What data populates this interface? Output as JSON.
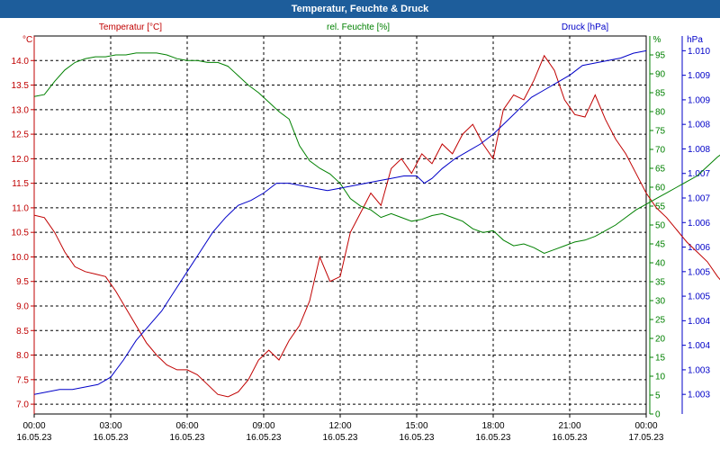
{
  "window_title": "Temperatur, Feuchte & Druck",
  "colors": {
    "temperature": "#c00000",
    "humidity": "#008000",
    "pressure": "#0000c8",
    "titlebar": "#1d5d9b",
    "axis": "#000000",
    "grid": "#000000"
  },
  "chart_data": {
    "type": "line",
    "title": "Temperatur, Feuchte & Druck",
    "grid": true,
    "x_ticks": [
      {
        "time": "00:00",
        "date": "16.05.23"
      },
      {
        "time": "03:00",
        "date": "16.05.23"
      },
      {
        "time": "06:00",
        "date": "16.05.23"
      },
      {
        "time": "09:00",
        "date": "16.05.23"
      },
      {
        "time": "12:00",
        "date": "16.05.23"
      },
      {
        "time": "15:00",
        "date": "16.05.23"
      },
      {
        "time": "18:00",
        "date": "16.05.23"
      },
      {
        "time": "21:00",
        "date": "16.05.23"
      },
      {
        "time": "00:00",
        "date": "17.05.23"
      }
    ],
    "x_range_hours": [
      0,
      24
    ],
    "axes": {
      "temperature": {
        "label": "Temperatur [°C]",
        "unit": "°C",
        "range": [
          6.8,
          14.5
        ],
        "ticks": [
          "7.0",
          "7.5",
          "8.0",
          "8.5",
          "9.0",
          "9.5",
          "10.0",
          "10.5",
          "11.0",
          "11.5",
          "12.0",
          "12.5",
          "13.0",
          "13.5",
          "14.0"
        ],
        "tick_values": [
          7.0,
          7.5,
          8.0,
          8.5,
          9.0,
          9.5,
          10.0,
          10.5,
          11.0,
          11.5,
          12.0,
          12.5,
          13.0,
          13.5,
          14.0
        ]
      },
      "humidity": {
        "label": "rel. Feuchte [%]",
        "unit": "%",
        "range": [
          0,
          100
        ],
        "ticks": [
          "0",
          "5",
          "10",
          "15",
          "20",
          "25",
          "30",
          "35",
          "40",
          "45",
          "50",
          "55",
          "60",
          "65",
          "70",
          "75",
          "80",
          "85",
          "90",
          "95"
        ],
        "tick_values": [
          0,
          5,
          10,
          15,
          20,
          25,
          30,
          35,
          40,
          45,
          50,
          55,
          60,
          65,
          70,
          75,
          80,
          85,
          90,
          95
        ]
      },
      "pressure": {
        "label": "Druck [hPa]",
        "unit": "hPa",
        "range": [
          1002.6,
          1010.3
        ],
        "ticks": [
          "1.003",
          "1.003",
          "1.004",
          "1.004",
          "1.005",
          "1.005",
          "1.006",
          "1.006",
          "1.007",
          "1.007",
          "1.008",
          "1.008",
          "1.009",
          "1.009",
          "1.010"
        ],
        "tick_values": [
          1003.0,
          1003.5,
          1004.0,
          1004.5,
          1005.0,
          1005.5,
          1006.0,
          1006.5,
          1007.0,
          1007.5,
          1008.0,
          1008.5,
          1009.0,
          1009.5,
          1010.0
        ]
      }
    },
    "series": [
      {
        "name": "Temperatur [°C]",
        "axis": "temperature",
        "points": [
          [
            0,
            10.85
          ],
          [
            0.4,
            10.8
          ],
          [
            0.8,
            10.5
          ],
          [
            1.2,
            10.1
          ],
          [
            1.6,
            9.8
          ],
          [
            2.0,
            9.7
          ],
          [
            2.4,
            9.65
          ],
          [
            2.8,
            9.6
          ],
          [
            3.2,
            9.3
          ],
          [
            3.6,
            8.95
          ],
          [
            4.0,
            8.6
          ],
          [
            4.4,
            8.25
          ],
          [
            4.8,
            8.0
          ],
          [
            5.2,
            7.8
          ],
          [
            5.6,
            7.7
          ],
          [
            6.0,
            7.7
          ],
          [
            6.4,
            7.6
          ],
          [
            6.8,
            7.4
          ],
          [
            7.2,
            7.2
          ],
          [
            7.6,
            7.15
          ],
          [
            8.0,
            7.25
          ],
          [
            8.4,
            7.5
          ],
          [
            8.8,
            7.9
          ],
          [
            9.2,
            8.1
          ],
          [
            9.6,
            7.9
          ],
          [
            10.0,
            8.3
          ],
          [
            10.4,
            8.6
          ],
          [
            10.8,
            9.1
          ],
          [
            11.2,
            10.0
          ],
          [
            11.6,
            9.5
          ],
          [
            12.0,
            9.6
          ],
          [
            12.4,
            10.5
          ],
          [
            12.8,
            10.9
          ],
          [
            13.2,
            11.3
          ],
          [
            13.6,
            11.05
          ],
          [
            14.0,
            11.8
          ],
          [
            14.4,
            12.0
          ],
          [
            14.8,
            11.7
          ],
          [
            15.2,
            12.1
          ],
          [
            15.6,
            11.9
          ],
          [
            16.0,
            12.3
          ],
          [
            16.4,
            12.1
          ],
          [
            16.8,
            12.5
          ],
          [
            17.2,
            12.7
          ],
          [
            17.6,
            12.3
          ],
          [
            18.0,
            12.0
          ],
          [
            18.4,
            13.0
          ],
          [
            18.8,
            13.3
          ],
          [
            19.2,
            13.2
          ],
          [
            19.6,
            13.6
          ],
          [
            20.0,
            14.1
          ],
          [
            20.4,
            13.8
          ],
          [
            20.8,
            13.2
          ],
          [
            21.2,
            12.9
          ],
          [
            21.6,
            12.85
          ],
          [
            22.0,
            13.3
          ],
          [
            22.4,
            12.8
          ],
          [
            22.8,
            12.4
          ],
          [
            23.2,
            12.1
          ],
          [
            23.6,
            11.7
          ],
          [
            24.0,
            11.3
          ],
          [
            24.4,
            11.0
          ],
          [
            24.8,
            10.8
          ],
          [
            25.2,
            10.55
          ],
          [
            25.6,
            10.3
          ],
          [
            26.0,
            10.1
          ],
          [
            26.4,
            9.9
          ],
          [
            26.8,
            9.6
          ],
          [
            27.2,
            9.35
          ]
        ]
      },
      {
        "name": "rel. Feuchte [%]",
        "axis": "humidity",
        "points": [
          [
            0,
            84
          ],
          [
            0.4,
            84.5
          ],
          [
            0.8,
            88
          ],
          [
            1.2,
            91
          ],
          [
            1.6,
            93
          ],
          [
            2.0,
            94
          ],
          [
            2.4,
            94.5
          ],
          [
            2.8,
            94.5
          ],
          [
            3.2,
            95
          ],
          [
            3.6,
            95
          ],
          [
            4.0,
            95.5
          ],
          [
            4.4,
            95.5
          ],
          [
            4.8,
            95.5
          ],
          [
            5.2,
            95
          ],
          [
            5.6,
            94
          ],
          [
            6.0,
            93.5
          ],
          [
            6.4,
            93.5
          ],
          [
            6.8,
            93
          ],
          [
            7.2,
            93
          ],
          [
            7.6,
            92
          ],
          [
            8.0,
            89.5
          ],
          [
            8.4,
            87
          ],
          [
            8.8,
            85
          ],
          [
            9.2,
            82.5
          ],
          [
            9.6,
            80
          ],
          [
            10.0,
            78
          ],
          [
            10.4,
            71
          ],
          [
            10.8,
            67
          ],
          [
            11.2,
            65
          ],
          [
            11.6,
            63.5
          ],
          [
            12.0,
            61
          ],
          [
            12.4,
            57
          ],
          [
            12.8,
            55
          ],
          [
            13.2,
            54
          ],
          [
            13.6,
            52
          ],
          [
            14.0,
            53
          ],
          [
            14.4,
            52
          ],
          [
            14.8,
            51
          ],
          [
            15.2,
            51.5
          ],
          [
            15.6,
            52.5
          ],
          [
            16.0,
            53
          ],
          [
            16.4,
            52
          ],
          [
            16.8,
            51
          ],
          [
            17.2,
            49
          ],
          [
            17.6,
            48
          ],
          [
            18.0,
            48.5
          ],
          [
            18.4,
            46
          ],
          [
            18.8,
            44.5
          ],
          [
            19.2,
            45
          ],
          [
            19.6,
            44
          ],
          [
            20.0,
            42.5
          ],
          [
            20.4,
            43.5
          ],
          [
            20.8,
            44.5
          ],
          [
            21.2,
            45.5
          ],
          [
            21.6,
            46
          ],
          [
            22.0,
            47
          ],
          [
            22.4,
            48.5
          ],
          [
            22.8,
            50
          ],
          [
            23.2,
            52
          ],
          [
            23.6,
            54
          ],
          [
            24.0,
            55.5
          ],
          [
            24.4,
            57
          ],
          [
            24.8,
            58.5
          ],
          [
            25.2,
            60
          ],
          [
            25.6,
            61.5
          ],
          [
            26.0,
            63
          ],
          [
            26.4,
            65.5
          ],
          [
            26.8,
            68
          ],
          [
            27.2,
            70
          ],
          [
            27.6,
            71.5
          ],
          [
            28.0,
            72.5
          ]
        ]
      },
      {
        "name": "Druck [hPa]",
        "axis": "pressure",
        "points": [
          [
            0,
            1003.0
          ],
          [
            0.5,
            1003.05
          ],
          [
            1.0,
            1003.1
          ],
          [
            1.5,
            1003.1
          ],
          [
            2.0,
            1003.15
          ],
          [
            2.5,
            1003.2
          ],
          [
            3.0,
            1003.35
          ],
          [
            3.5,
            1003.7
          ],
          [
            4.0,
            1004.1
          ],
          [
            4.5,
            1004.4
          ],
          [
            5.0,
            1004.7
          ],
          [
            5.5,
            1005.1
          ],
          [
            6.0,
            1005.5
          ],
          [
            6.5,
            1005.9
          ],
          [
            7.0,
            1006.3
          ],
          [
            7.5,
            1006.6
          ],
          [
            8.0,
            1006.85
          ],
          [
            8.5,
            1006.95
          ],
          [
            9.0,
            1007.1
          ],
          [
            9.5,
            1007.3
          ],
          [
            10.0,
            1007.3
          ],
          [
            10.5,
            1007.25
          ],
          [
            11.0,
            1007.2
          ],
          [
            11.5,
            1007.15
          ],
          [
            12.0,
            1007.2
          ],
          [
            12.5,
            1007.25
          ],
          [
            13.0,
            1007.3
          ],
          [
            13.5,
            1007.35
          ],
          [
            14.0,
            1007.4
          ],
          [
            14.5,
            1007.45
          ],
          [
            15.0,
            1007.45
          ],
          [
            15.3,
            1007.3
          ],
          [
            15.6,
            1007.4
          ],
          [
            16.0,
            1007.6
          ],
          [
            16.5,
            1007.8
          ],
          [
            17.0,
            1007.95
          ],
          [
            17.5,
            1008.1
          ],
          [
            18.0,
            1008.3
          ],
          [
            18.5,
            1008.55
          ],
          [
            19.0,
            1008.8
          ],
          [
            19.5,
            1009.05
          ],
          [
            20.0,
            1009.2
          ],
          [
            20.5,
            1009.35
          ],
          [
            21.0,
            1009.5
          ],
          [
            21.5,
            1009.7
          ],
          [
            22.0,
            1009.75
          ],
          [
            22.5,
            1009.8
          ],
          [
            23.0,
            1009.85
          ],
          [
            23.5,
            1009.95
          ],
          [
            24.0,
            1010.0
          ]
        ]
      }
    ]
  }
}
